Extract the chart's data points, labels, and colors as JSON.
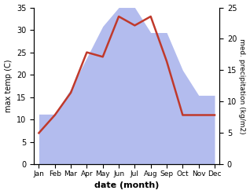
{
  "months": [
    "Jan",
    "Feb",
    "Mar",
    "Apr",
    "May",
    "Jun",
    "Jul",
    "Aug",
    "Sep",
    "Oct",
    "Nov",
    "Dec"
  ],
  "temperature": [
    7,
    11,
    16,
    25,
    24,
    33,
    31,
    33,
    23,
    11,
    11,
    11
  ],
  "precipitation": [
    8,
    8,
    12,
    17,
    22,
    25,
    25,
    21,
    21,
    15,
    11,
    11
  ],
  "temp_color": "#c0392b",
  "precip_color": "#b3bcee",
  "temp_ylim": [
    0,
    35
  ],
  "precip_ylim": [
    0,
    25
  ],
  "temp_yticks": [
    0,
    5,
    10,
    15,
    20,
    25,
    30,
    35
  ],
  "precip_yticks": [
    0,
    5,
    10,
    15,
    20,
    25
  ],
  "xlabel": "date (month)",
  "ylabel_left": "max temp (C)",
  "ylabel_right": "med. precipitation (kg/m2)",
  "line_width": 1.8,
  "bg_color": "#ffffff",
  "temp_scale_factor": 1.4,
  "figsize": [
    3.18,
    2.47
  ],
  "dpi": 100
}
